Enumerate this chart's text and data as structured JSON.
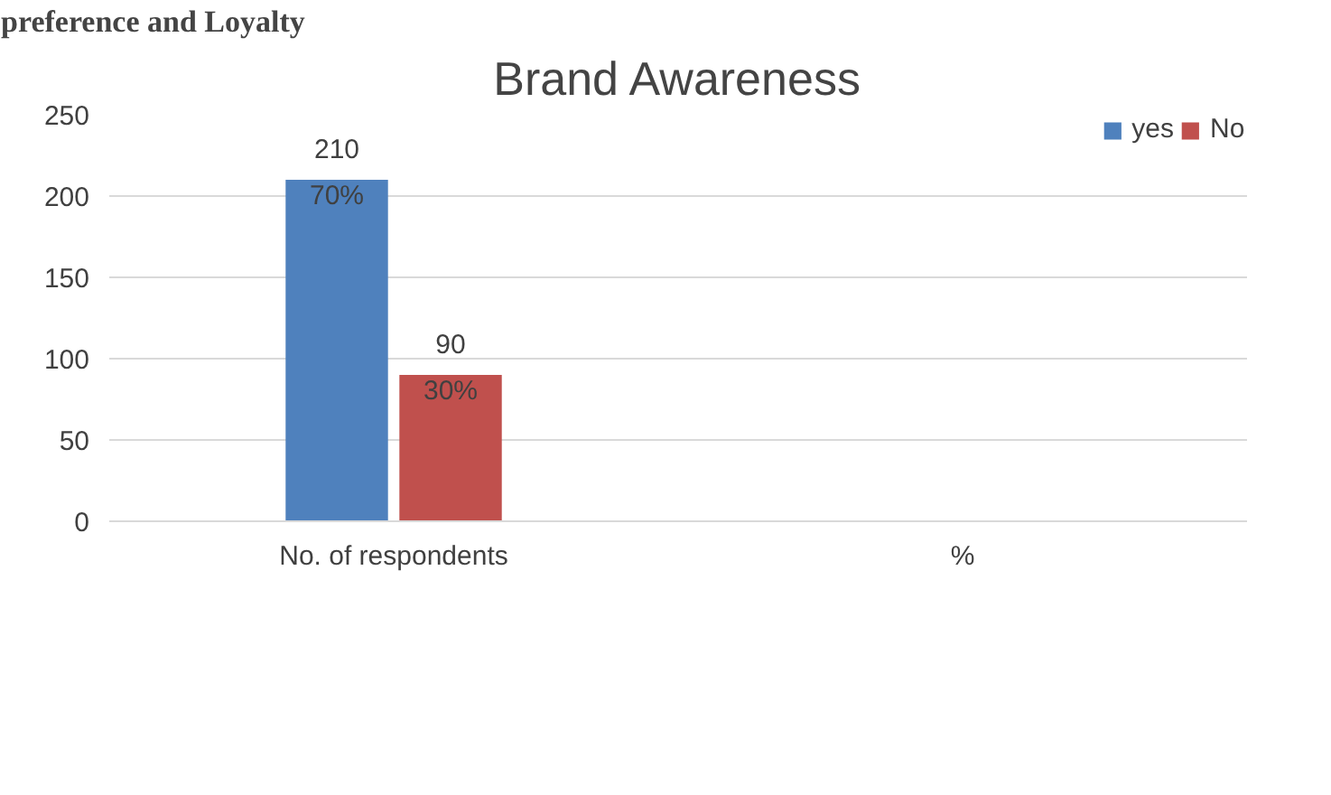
{
  "chart_data": {
    "type": "bar",
    "title": "Brand Awareness",
    "categories": [
      "No. of respondents",
      "%"
    ],
    "series": [
      {
        "name": "yes",
        "color": "#4f81bd",
        "values": [
          210,
          null
        ],
        "value_labels": [
          "210",
          null
        ]
      },
      {
        "name": "No",
        "color": "#c0504d",
        "values": [
          90,
          null
        ],
        "value_labels": [
          "90",
          null
        ]
      }
    ],
    "annotations": [
      "preference and Loyalty",
      {
        "text": "70%",
        "x": "No. of respondents",
        "y": 200
      },
      {
        "text": "30%",
        "x": "No. of respondents",
        "y": 80
      }
    ],
    "ylim": [
      0,
      250
    ],
    "yticks": [
      0,
      50,
      100,
      150,
      200,
      250
    ],
    "grid": "y",
    "legend": "top right"
  }
}
